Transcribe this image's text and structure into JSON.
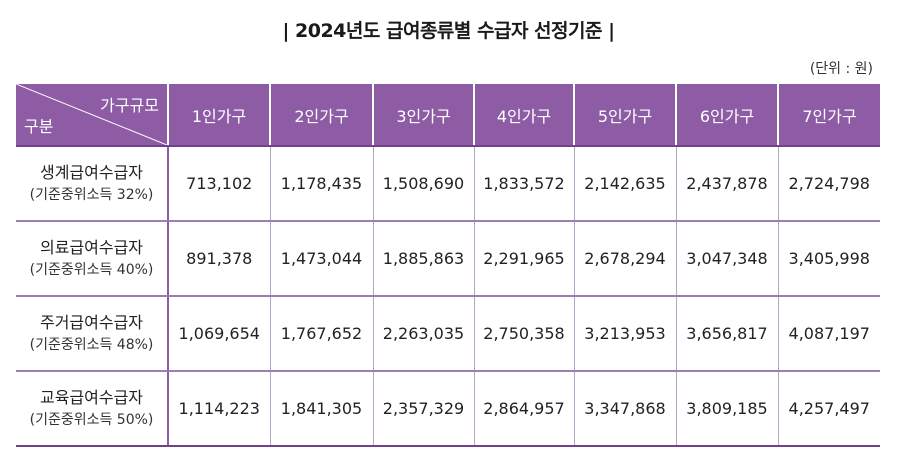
{
  "title": "| 2024년도 급여종류별 수급자 선정기준 |",
  "unit": "(단위 : 원)",
  "corner": {
    "top_label": "가구규모",
    "bottom_label": "구분"
  },
  "columns": [
    "1인가구",
    "2인가구",
    "3인가구",
    "4인가구",
    "5인가구",
    "6인가구",
    "7인가구"
  ],
  "rows": [
    {
      "name": "생계급여수급자",
      "criteria": "(기준중위소득 32%)",
      "values": [
        "713,102",
        "1,178,435",
        "1,508,690",
        "1,833,572",
        "2,142,635",
        "2,437,878",
        "2,724,798"
      ]
    },
    {
      "name": "의료급여수급자",
      "criteria": "(기준중위소득 40%)",
      "values": [
        "891,378",
        "1,473,044",
        "1,885,863",
        "2,291,965",
        "2,678,294",
        "3,047,348",
        "3,405,998"
      ]
    },
    {
      "name": "주거급여수급자",
      "criteria": "(기준중위소득 48%)",
      "values": [
        "1,069,654",
        "1,767,652",
        "2,263,035",
        "2,750,358",
        "3,213,953",
        "3,656,817",
        "4,087,197"
      ]
    },
    {
      "name": "교육급여수급자",
      "criteria": "(기준중위소득 50%)",
      "values": [
        "1,114,223",
        "1,841,305",
        "2,357,329",
        "2,864,957",
        "3,347,868",
        "3,809,185",
        "4,257,497"
      ]
    }
  ],
  "colors": {
    "header_bg": "#8e5ca4",
    "header_text": "#ffffff",
    "row_border": "#9a7fb0"
  }
}
